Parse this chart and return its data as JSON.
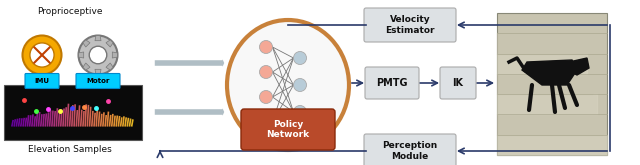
{
  "bg_color": "#ffffff",
  "ellipse_edge": "#c8813a",
  "policy_box_color": "#b94a2a",
  "node_color_left": "#f4a896",
  "node_color_right": "#b8ccd8",
  "arrow_color": "#2a3a6a",
  "gray_arrow_color": "#b0bec5",
  "box_fc": "#dde1e4",
  "box_ec": "#aaaaaa",
  "label_proprioceptive": "Proprioceptive",
  "label_elevation": "Elevation Samples",
  "label_policy": "Policy\nNetwork",
  "label_pmtg": "PMTG",
  "label_ik": "IK",
  "label_velocity": "Velocity\nEstimator",
  "label_perception": "Perception\nModule",
  "figsize": [
    6.4,
    1.65
  ],
  "dpi": 100
}
